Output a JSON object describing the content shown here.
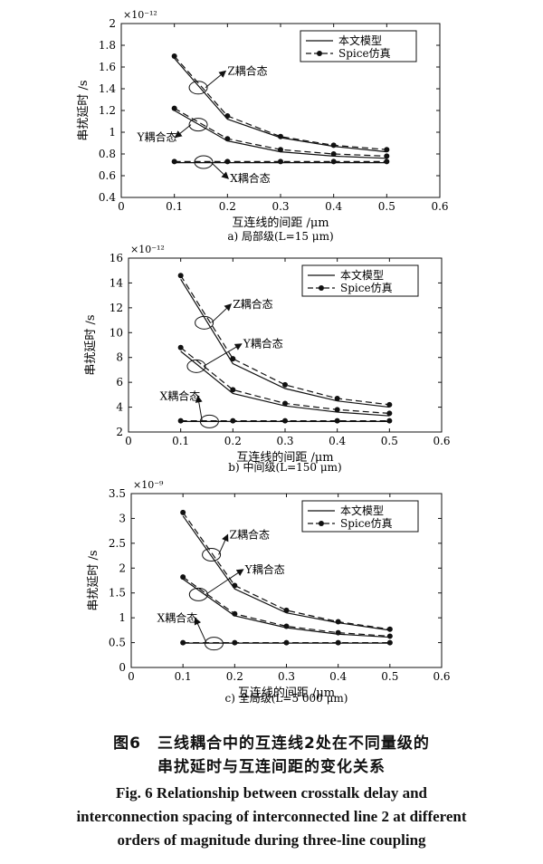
{
  "chart_data": [
    {
      "type": "line",
      "exponent": "×10⁻¹²",
      "xlabel": "互连线的间距 /μm",
      "ylabel": "串扰延时 /s",
      "subtitle": "a) 局部级(L=15 μm)",
      "xlim": [
        0,
        0.6
      ],
      "ylim": [
        0.4,
        2
      ],
      "xticks": [
        "0",
        "0.1",
        "0.2",
        "0.3",
        "0.4",
        "0.5",
        "0.6"
      ],
      "yticks": [
        "0.4",
        "0.6",
        "0.8",
        "1",
        "1.2",
        "1.4",
        "1.6",
        "1.8",
        "2"
      ],
      "legend": [
        "本文模型",
        "Spice仿真"
      ],
      "x": [
        0.1,
        0.2,
        0.3,
        0.4,
        0.5
      ],
      "series": [
        {
          "group": "Z耦合态",
          "model": [
            1.68,
            1.12,
            0.95,
            0.87,
            0.82
          ],
          "spice": [
            1.7,
            1.15,
            0.96,
            0.88,
            0.84
          ]
        },
        {
          "group": "Y耦合态",
          "model": [
            1.2,
            0.92,
            0.82,
            0.78,
            0.76
          ],
          "spice": [
            1.22,
            0.94,
            0.84,
            0.8,
            0.78
          ]
        },
        {
          "group": "X耦合态",
          "model": [
            0.72,
            0.72,
            0.72,
            0.72,
            0.72
          ],
          "spice": [
            0.73,
            0.73,
            0.73,
            0.73,
            0.73
          ]
        }
      ],
      "annotations": [
        {
          "text": "Z耦合态",
          "tx": 0.2,
          "ty": 1.53,
          "ex": 0.145,
          "ey": 1.41
        },
        {
          "text": "Y耦合态",
          "tx": 0.03,
          "ty": 0.92,
          "ex": 0.145,
          "ey": 1.07
        },
        {
          "text": "X耦合态",
          "tx": 0.205,
          "ty": 0.54,
          "ex": 0.155,
          "ey": 0.725
        }
      ]
    },
    {
      "type": "line",
      "exponent": "×10⁻¹²",
      "xlabel": "互连线的间距 /μm",
      "ylabel": "串扰延时 /s",
      "subtitle": "b) 中间级(L=150 μm)",
      "xlim": [
        0,
        0.6
      ],
      "ylim": [
        2,
        16
      ],
      "xticks": [
        "0",
        "0.1",
        "0.2",
        "0.3",
        "0.4",
        "0.5",
        "0.6"
      ],
      "yticks": [
        "2",
        "4",
        "6",
        "8",
        "10",
        "12",
        "14",
        "16"
      ],
      "legend": [
        "本文模型",
        "Spice仿真"
      ],
      "x": [
        0.1,
        0.2,
        0.3,
        0.4,
        0.5
      ],
      "series": [
        {
          "group": "Z耦合态",
          "model": [
            14.3,
            7.5,
            5.5,
            4.5,
            4.0
          ],
          "spice": [
            14.6,
            7.9,
            5.8,
            4.7,
            4.2
          ]
        },
        {
          "group": "Y耦合态",
          "model": [
            8.5,
            5.1,
            4.1,
            3.6,
            3.3
          ],
          "spice": [
            8.8,
            5.4,
            4.3,
            3.8,
            3.5
          ]
        },
        {
          "group": "X耦合态",
          "model": [
            2.85,
            2.85,
            2.85,
            2.85,
            2.85
          ],
          "spice": [
            2.9,
            2.9,
            2.9,
            2.9,
            2.9
          ]
        }
      ],
      "annotations": [
        {
          "text": "Z耦合态",
          "tx": 0.2,
          "ty": 12.0,
          "ex": 0.145,
          "ey": 10.8
        },
        {
          "text": "Y耦合态",
          "tx": 0.22,
          "ty": 8.8,
          "ex": 0.13,
          "ey": 7.3
        },
        {
          "text": "X耦合态",
          "tx": 0.06,
          "ty": 4.6,
          "ex": 0.155,
          "ey": 2.85
        }
      ]
    },
    {
      "type": "line",
      "exponent": "×10⁻⁹",
      "xlabel": "互连线的间距 /μm",
      "ylabel": "串扰延时 /s",
      "subtitle": "c) 全局级(L=5 000 μm)",
      "xlim": [
        0,
        0.6
      ],
      "ylim": [
        0,
        3.5
      ],
      "xticks": [
        "0",
        "0.1",
        "0.2",
        "0.3",
        "0.4",
        "0.5",
        "0.6"
      ],
      "yticks": [
        "0",
        "0.5",
        "1",
        "1.5",
        "2",
        "2.5",
        "3",
        "3.5"
      ],
      "legend": [
        "本文模型",
        "Spice仿真"
      ],
      "x": [
        0.1,
        0.2,
        0.3,
        0.4,
        0.5
      ],
      "series": [
        {
          "group": "Z耦合态",
          "model": [
            3.05,
            1.58,
            1.1,
            0.9,
            0.75
          ],
          "spice": [
            3.12,
            1.65,
            1.15,
            0.92,
            0.77
          ]
        },
        {
          "group": "Y耦合态",
          "model": [
            1.78,
            1.04,
            0.8,
            0.67,
            0.61
          ],
          "spice": [
            1.82,
            1.08,
            0.83,
            0.7,
            0.63
          ]
        },
        {
          "group": "X耦合态",
          "model": [
            0.49,
            0.49,
            0.49,
            0.49,
            0.49
          ],
          "spice": [
            0.5,
            0.5,
            0.5,
            0.5,
            0.5
          ]
        }
      ],
      "annotations": [
        {
          "text": "Z耦合态",
          "tx": 0.19,
          "ty": 2.6,
          "ex": 0.155,
          "ey": 2.27
        },
        {
          "text": "Y耦合态",
          "tx": 0.22,
          "ty": 1.9,
          "ex": 0.13,
          "ey": 1.47
        },
        {
          "text": "X耦合态",
          "tx": 0.05,
          "ty": 0.92,
          "ex": 0.16,
          "ey": 0.48
        }
      ]
    }
  ],
  "caption": {
    "zh_line1": "图6　三线耦合中的互连线2处在不同量级的",
    "zh_line2": "串扰延时与互连间距的变化关系",
    "en_line1": "Fig. 6  Relationship between crosstalk delay and",
    "en_line2": "interconnection spacing of interconnected line 2 at different",
    "en_line3": "orders of magnitude during three-line coupling"
  }
}
